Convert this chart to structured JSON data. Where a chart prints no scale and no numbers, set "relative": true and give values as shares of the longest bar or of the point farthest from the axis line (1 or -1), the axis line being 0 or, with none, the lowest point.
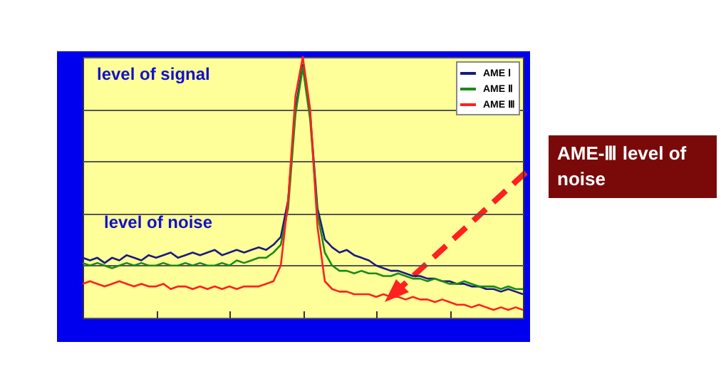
{
  "chart_data": {
    "type": "line",
    "relative": true,
    "grid": "y",
    "legend": "top right",
    "marker": "none",
    "line_style": "solid",
    "categories": [
      null,
      null,
      null,
      null,
      null,
      null,
      null,
      null,
      null,
      null,
      null,
      null,
      null,
      null,
      null,
      null,
      null,
      null,
      null,
      null,
      null,
      null,
      null,
      null,
      null,
      null,
      null,
      null,
      null,
      null,
      null,
      null,
      null,
      null,
      null,
      null,
      null,
      null,
      null,
      null,
      null,
      null,
      null,
      null,
      null,
      null,
      null,
      null,
      null,
      null,
      null,
      null,
      null,
      null,
      null,
      null,
      null,
      null,
      null,
      null,
      null
    ],
    "series": [
      {
        "name": "AME Ⅰ",
        "color": "#1a1a80",
        "values": [
          0.23,
          0.22,
          0.23,
          0.21,
          0.23,
          0.22,
          0.24,
          0.23,
          0.22,
          0.24,
          0.23,
          0.24,
          0.25,
          0.23,
          0.24,
          0.25,
          0.24,
          0.25,
          0.26,
          0.24,
          0.25,
          0.26,
          0.25,
          0.26,
          0.27,
          0.26,
          0.28,
          0.31,
          0.45,
          0.8,
          0.97,
          0.78,
          0.42,
          0.3,
          0.27,
          0.25,
          0.26,
          0.24,
          0.23,
          0.22,
          0.2,
          0.19,
          0.18,
          0.18,
          0.17,
          0.16,
          0.16,
          0.15,
          0.15,
          0.14,
          0.14,
          0.13,
          0.13,
          0.12,
          0.12,
          0.11,
          0.11,
          0.1,
          0.11,
          0.1,
          0.09
        ]
      },
      {
        "name": "AME Ⅱ",
        "color": "#1a8a1a",
        "values": [
          0.21,
          0.2,
          0.21,
          0.2,
          0.19,
          0.2,
          0.21,
          0.2,
          0.21,
          0.2,
          0.2,
          0.21,
          0.2,
          0.2,
          0.21,
          0.2,
          0.21,
          0.2,
          0.2,
          0.21,
          0.2,
          0.22,
          0.21,
          0.22,
          0.23,
          0.23,
          0.25,
          0.28,
          0.42,
          0.78,
          0.96,
          0.76,
          0.4,
          0.25,
          0.2,
          0.18,
          0.18,
          0.17,
          0.18,
          0.17,
          0.17,
          0.16,
          0.16,
          0.17,
          0.16,
          0.15,
          0.15,
          0.14,
          0.15,
          0.14,
          0.13,
          0.13,
          0.14,
          0.13,
          0.12,
          0.12,
          0.12,
          0.11,
          0.12,
          0.11,
          0.11
        ]
      },
      {
        "name": "AME Ⅲ",
        "color": "#ff2020",
        "values": [
          0.13,
          0.14,
          0.13,
          0.12,
          0.13,
          0.14,
          0.13,
          0.12,
          0.13,
          0.12,
          0.12,
          0.13,
          0.11,
          0.12,
          0.12,
          0.11,
          0.12,
          0.11,
          0.12,
          0.11,
          0.12,
          0.11,
          0.12,
          0.12,
          0.12,
          0.13,
          0.14,
          0.2,
          0.45,
          0.85,
          1,
          0.8,
          0.35,
          0.14,
          0.11,
          0.1,
          0.1,
          0.09,
          0.09,
          0.09,
          0.08,
          0.09,
          0.08,
          0.08,
          0.07,
          0.08,
          0.07,
          0.07,
          0.06,
          0.07,
          0.06,
          0.05,
          0.05,
          0.04,
          0.05,
          0.04,
          0.03,
          0.04,
          0.03,
          0.04,
          0.03
        ]
      }
    ],
    "annotations": [
      "level of signal",
      "level of noise",
      "AME-Ⅲ level of noise"
    ]
  }
}
